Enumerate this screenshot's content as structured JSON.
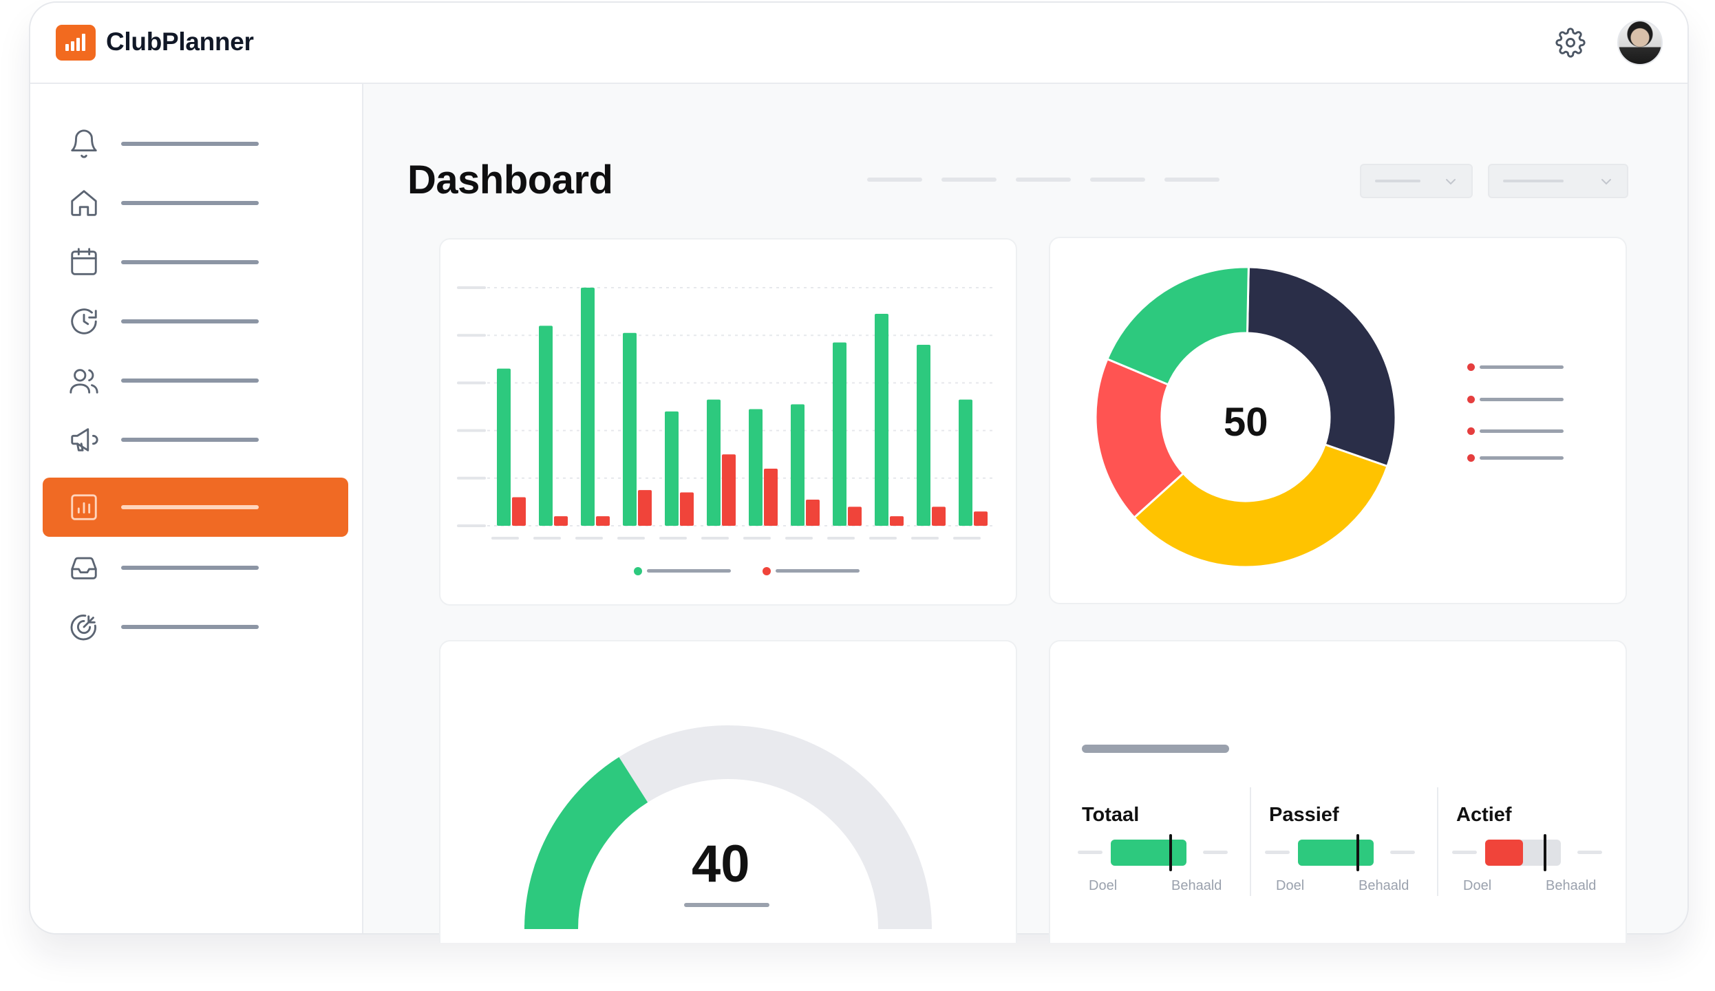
{
  "app": {
    "name": "ClubPlanner"
  },
  "header": {
    "settings_icon": "gear-icon",
    "notifications_icon": "bell-icon",
    "avatar": "user-avatar"
  },
  "sidebar": {
    "items": [
      {
        "icon": "bell-icon",
        "active": false
      },
      {
        "icon": "home-icon",
        "active": false
      },
      {
        "icon": "calendar-icon",
        "active": false
      },
      {
        "icon": "clock-refresh-icon",
        "active": false
      },
      {
        "icon": "users-icon",
        "active": false
      },
      {
        "icon": "megaphone-icon",
        "active": false
      },
      {
        "icon": "chart-bar-icon",
        "active": true
      },
      {
        "icon": "inbox-icon",
        "active": false
      },
      {
        "icon": "target-icon",
        "active": false
      }
    ]
  },
  "main": {
    "title": "Dashboard"
  },
  "colors": {
    "accent": "#f06a24",
    "green": "#2dc97e",
    "red": "#f0443a",
    "navy": "#2a2e48",
    "yellow": "#ffc300",
    "coral": "#ff5452",
    "gauge_bg": "#e9eaee"
  },
  "chart_data": [
    {
      "type": "bar",
      "series": [
        {
          "values": [
            66,
            84,
            100,
            81,
            48,
            53,
            49,
            51,
            77,
            89,
            76,
            53
          ],
          "color": "#2dc97e"
        },
        {
          "values": [
            12,
            4,
            4,
            15,
            14,
            30,
            24,
            11,
            8,
            4,
            8,
            6
          ],
          "color": "#f0443a"
        }
      ],
      "ylim": [
        0,
        100
      ],
      "grid": true,
      "legend": "bottom-center"
    },
    {
      "type": "pie",
      "center_value": "50",
      "slices": [
        {
          "value": 30,
          "color": "#2a2e48"
        },
        {
          "value": 33,
          "color": "#ffc300"
        },
        {
          "value": 18,
          "color": "#ff5452"
        },
        {
          "value": 19,
          "color": "#2dc97e"
        }
      ],
      "legend": "right"
    },
    {
      "type": "gauge",
      "value": "40",
      "fill_fraction": 0.2,
      "color": "#2dc97e"
    }
  ],
  "kpis": [
    {
      "label": "Totaal",
      "doel": "Doel",
      "behaald": "Behaald",
      "color": "#2dc97e",
      "fill": 1.0,
      "marker": 0.77
    },
    {
      "label": "Passief",
      "doel": "Doel",
      "behaald": "Behaald",
      "color": "#2dc97e",
      "fill": 1.0,
      "marker": 0.77
    },
    {
      "label": "Actief",
      "doel": "Doel",
      "behaald": "Behaald",
      "color": "#f0443a",
      "fill": 0.5,
      "marker": 0.77
    }
  ]
}
